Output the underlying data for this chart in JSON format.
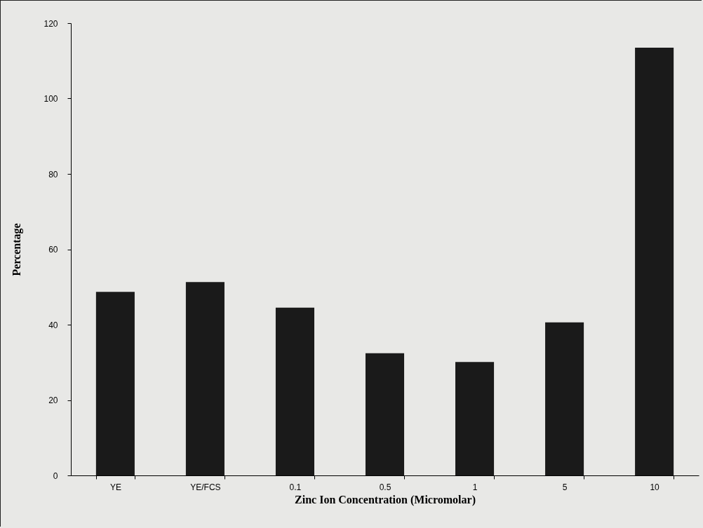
{
  "chart_data": {
    "type": "bar",
    "xlabel": "Zinc Ion Concentration (Micromolar)",
    "ylabel": "Percentage",
    "categories": [
      "YE",
      "YE/FCS",
      "0.1",
      "0.5",
      "1",
      "5",
      "10"
    ],
    "values": [
      48.7,
      51.3,
      44.5,
      32.4,
      30.1,
      40.6,
      113.5
    ],
    "color": "#1a1a1a",
    "ylim": [
      0,
      120
    ],
    "yticks": [
      0,
      20,
      40,
      60,
      80,
      100,
      120
    ],
    "grid": false
  }
}
